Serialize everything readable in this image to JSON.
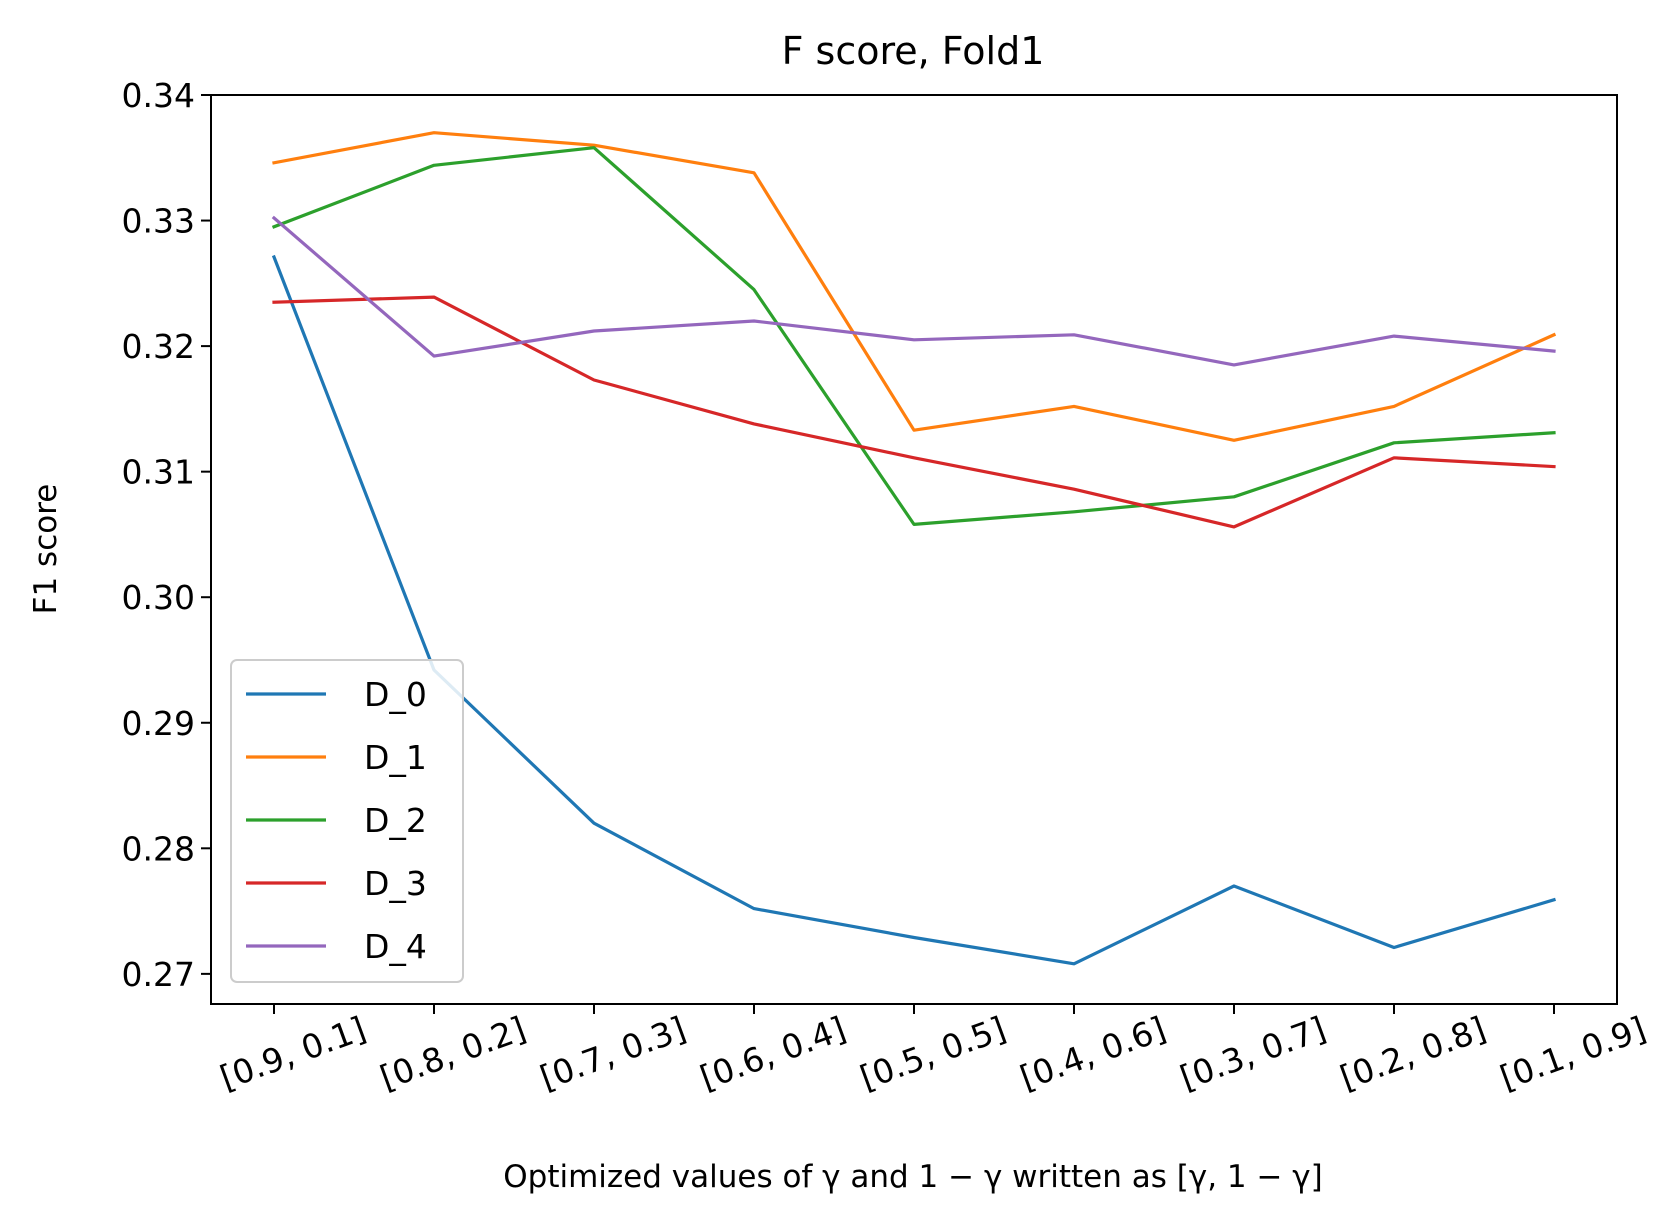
{
  "chart_data": {
    "type": "line",
    "title": "F score, Fold1",
    "xlabel": "Optimized values of γ and 1 − γ written as [γ, 1 − γ]",
    "ylabel": "F1 score",
    "categories": [
      "[0.9, 0.1]",
      "[0.8, 0.2]",
      "[0.7, 0.3]",
      "[0.6, 0.4]",
      "[0.5, 0.5]",
      "[0.4, 0.6]",
      "[0.3, 0.7]",
      "[0.2, 0.8]",
      "[0.1, 0.9]"
    ],
    "yticks": [
      "0.27",
      "0.28",
      "0.29",
      "0.30",
      "0.31",
      "0.32",
      "0.33",
      "0.34"
    ],
    "ylim": [
      0.2676,
      0.34
    ],
    "grid": false,
    "legend_position": "lower-left",
    "series": [
      {
        "name": "D_0",
        "color": "#1f77b4",
        "values": [
          0.3271,
          0.2942,
          0.282,
          0.2752,
          0.2729,
          0.2708,
          0.277,
          0.2721,
          0.2759
        ]
      },
      {
        "name": "D_1",
        "color": "#ff7f0e",
        "values": [
          0.3346,
          0.337,
          0.336,
          0.3338,
          0.3133,
          0.3152,
          0.3125,
          0.3152,
          0.3209
        ]
      },
      {
        "name": "D_2",
        "color": "#2ca02c",
        "values": [
          0.3295,
          0.3344,
          0.3358,
          0.3245,
          0.3058,
          0.3068,
          0.308,
          0.3123,
          0.3131
        ]
      },
      {
        "name": "D_3",
        "color": "#d62728",
        "values": [
          0.3235,
          0.3239,
          0.3173,
          0.3138,
          0.3111,
          0.3086,
          0.3056,
          0.3111,
          0.3104
        ]
      },
      {
        "name": "D_4",
        "color": "#9467bd",
        "values": [
          0.3302,
          0.3192,
          0.3212,
          0.322,
          0.3205,
          0.3209,
          0.3185,
          0.3208,
          0.3196
        ]
      }
    ]
  }
}
